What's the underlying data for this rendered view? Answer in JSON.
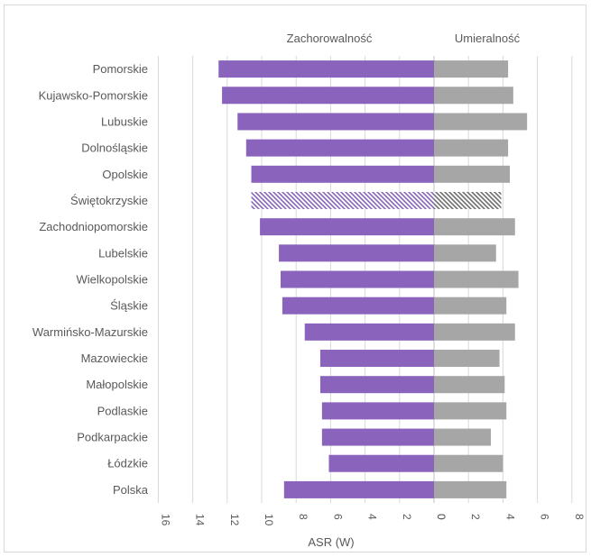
{
  "chart_data": {
    "type": "bar",
    "orientation": "horizontal",
    "layout": "butterfly",
    "categories": [
      "Pomorskie",
      "Kujawsko-Pomorskie",
      "Lubuskie",
      "Dolnośląskie",
      "Opolskie",
      "Świętokrzyskie",
      "Zachodniopomorskie",
      "Lubelskie",
      "Wielkopolskie",
      "Śląskie",
      "Warmińsko-Mazurskie",
      "Mazowieckie",
      "Małopolskie",
      "Podlaskie",
      "Podkarpackie",
      "Łódzkie",
      "Polska"
    ],
    "highlighted_category": "Świętokrzyskie",
    "series": [
      {
        "name": "Zachorowalność",
        "color": "#8a63bd",
        "side": "left",
        "values": [
          12.5,
          12.3,
          11.4,
          10.9,
          10.6,
          10.6,
          10.1,
          9.0,
          8.9,
          8.8,
          7.5,
          6.6,
          6.6,
          6.5,
          6.5,
          6.1,
          8.7
        ],
        "xlim": [
          16,
          0
        ],
        "ticks": [
          "16",
          "14",
          "12",
          "10",
          "8",
          "6",
          "4",
          "2",
          "0"
        ]
      },
      {
        "name": "Umieralność",
        "color": "#a6a6a6",
        "side": "right",
        "values": [
          4.3,
          4.6,
          5.4,
          4.3,
          4.4,
          3.9,
          4.7,
          3.6,
          4.9,
          4.2,
          4.7,
          3.8,
          4.1,
          4.2,
          3.3,
          4.0,
          4.2
        ],
        "xlim": [
          0,
          8
        ],
        "ticks": [
          "0",
          "2",
          "4",
          "6",
          "8"
        ]
      }
    ],
    "xlabel": "ASR (W)",
    "grid": true
  }
}
